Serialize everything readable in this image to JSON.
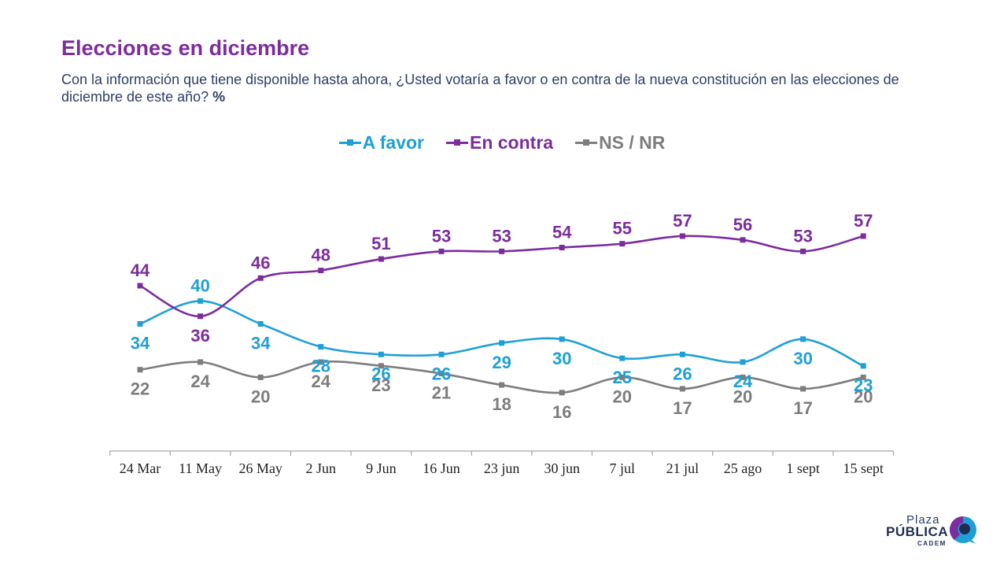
{
  "header": {
    "title": "Elecciones en diciembre",
    "subtitle": "Con la información que tiene disponible hasta ahora, ¿Usted votaría a favor o en contra de la nueva constitución en las elecciones de diciembre de este año?",
    "subtitle_unit": "%"
  },
  "chart_data": {
    "type": "line",
    "categories": [
      "24 Mar",
      "11 May",
      "26 May",
      "2 Jun",
      "9 Jun",
      "16 Jun",
      "23 jun",
      "30 jun",
      "7 jul",
      "21 jul",
      "25 ago",
      "1 sept",
      "15 sept"
    ],
    "series": [
      {
        "name": "A favor",
        "color": "#1ea0d6",
        "values": [
          34,
          40,
          34,
          28,
          26,
          26,
          29,
          30,
          25,
          26,
          24,
          30,
          23
        ]
      },
      {
        "name": "En contra",
        "color": "#7b2d9e",
        "values": [
          44,
          36,
          46,
          48,
          51,
          53,
          53,
          54,
          55,
          57,
          56,
          53,
          57
        ]
      },
      {
        "name": "NS / NR",
        "color": "#7d7d7d",
        "values": [
          22,
          24,
          20,
          24,
          23,
          21,
          18,
          16,
          20,
          17,
          20,
          17,
          20
        ]
      }
    ],
    "legend_position": "top-center",
    "grid": false
  },
  "logo": {
    "plaza": "Plaza",
    "publica": "PÚBLICA",
    "cadem": "CADEM"
  }
}
